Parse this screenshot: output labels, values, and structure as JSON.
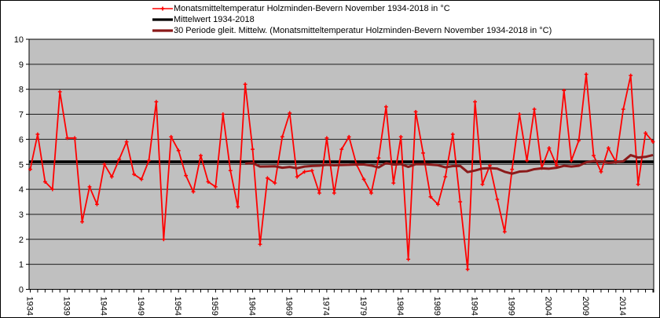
{
  "chart_data": {
    "type": "line",
    "title": "",
    "xlabel": "",
    "ylabel": "",
    "ylim": [
      0,
      10
    ],
    "grid": "horizontal",
    "plot_bg": "#C0C0C0",
    "legend_position": "top-left",
    "y_ticks": [
      0,
      1,
      2,
      3,
      4,
      5,
      6,
      7,
      8,
      9,
      10
    ],
    "x_tick_labels": [
      1934,
      1939,
      1944,
      1949,
      1954,
      1959,
      1964,
      1969,
      1974,
      1979,
      1984,
      1989,
      1994,
      1999,
      2004,
      2009,
      2014
    ],
    "x": [
      1934,
      1935,
      1936,
      1937,
      1938,
      1939,
      1940,
      1941,
      1942,
      1943,
      1944,
      1945,
      1946,
      1947,
      1948,
      1949,
      1950,
      1951,
      1952,
      1953,
      1954,
      1955,
      1956,
      1957,
      1958,
      1959,
      1960,
      1961,
      1962,
      1963,
      1964,
      1965,
      1966,
      1967,
      1968,
      1969,
      1970,
      1971,
      1972,
      1973,
      1974,
      1975,
      1976,
      1977,
      1978,
      1979,
      1980,
      1981,
      1982,
      1983,
      1984,
      1985,
      1986,
      1987,
      1988,
      1989,
      1990,
      1991,
      1992,
      1993,
      1994,
      1995,
      1996,
      1997,
      1998,
      1999,
      2000,
      2001,
      2002,
      2003,
      2004,
      2005,
      2006,
      2007,
      2008,
      2009,
      2010,
      2011,
      2012,
      2013,
      2014,
      2015,
      2016,
      2017,
      2018
    ],
    "series": [
      {
        "name": "Monatsmitteltemperatur Holzminden-Bevern November 1934-2018 in °C",
        "type": "line_with_plus_markers",
        "color": "#FF0000",
        "values": [
          4.8,
          6.2,
          4.3,
          4.0,
          7.9,
          6.05,
          6.05,
          2.7,
          4.1,
          3.4,
          5.0,
          4.5,
          5.2,
          5.9,
          4.6,
          4.4,
          5.15,
          7.5,
          2.0,
          6.1,
          5.55,
          4.55,
          3.9,
          5.35,
          4.3,
          4.1,
          7.0,
          4.75,
          3.3,
          8.2,
          5.6,
          1.8,
          4.45,
          4.25,
          6.1,
          7.05,
          4.5,
          4.7,
          4.75,
          3.85,
          6.05,
          3.85,
          5.6,
          6.1,
          5.0,
          4.4,
          3.85,
          5.25,
          7.3,
          4.25,
          6.1,
          1.2,
          7.1,
          5.45,
          3.7,
          3.4,
          4.5,
          6.2,
          3.5,
          0.8,
          7.5,
          4.2,
          4.95,
          3.6,
          2.3,
          4.8,
          7.0,
          5.15,
          7.2,
          4.85,
          5.65,
          4.95,
          7.95,
          5.15,
          5.95,
          8.6,
          5.35,
          4.7,
          5.65,
          5.1,
          7.2,
          8.55,
          4.2,
          6.25,
          5.9
        ]
      },
      {
        "name": "Mittelwert 1934-2018",
        "type": "constant_line",
        "color": "#000000",
        "value": 5.1
      },
      {
        "name": "30 Periode gleit. Mittelw. (Monatsmitteltemperatur Holzminden-Bevern November 1934-2018 in °C)",
        "type": "trailing_moving_average",
        "color": "#8B1A1A",
        "window": 30
      }
    ]
  }
}
